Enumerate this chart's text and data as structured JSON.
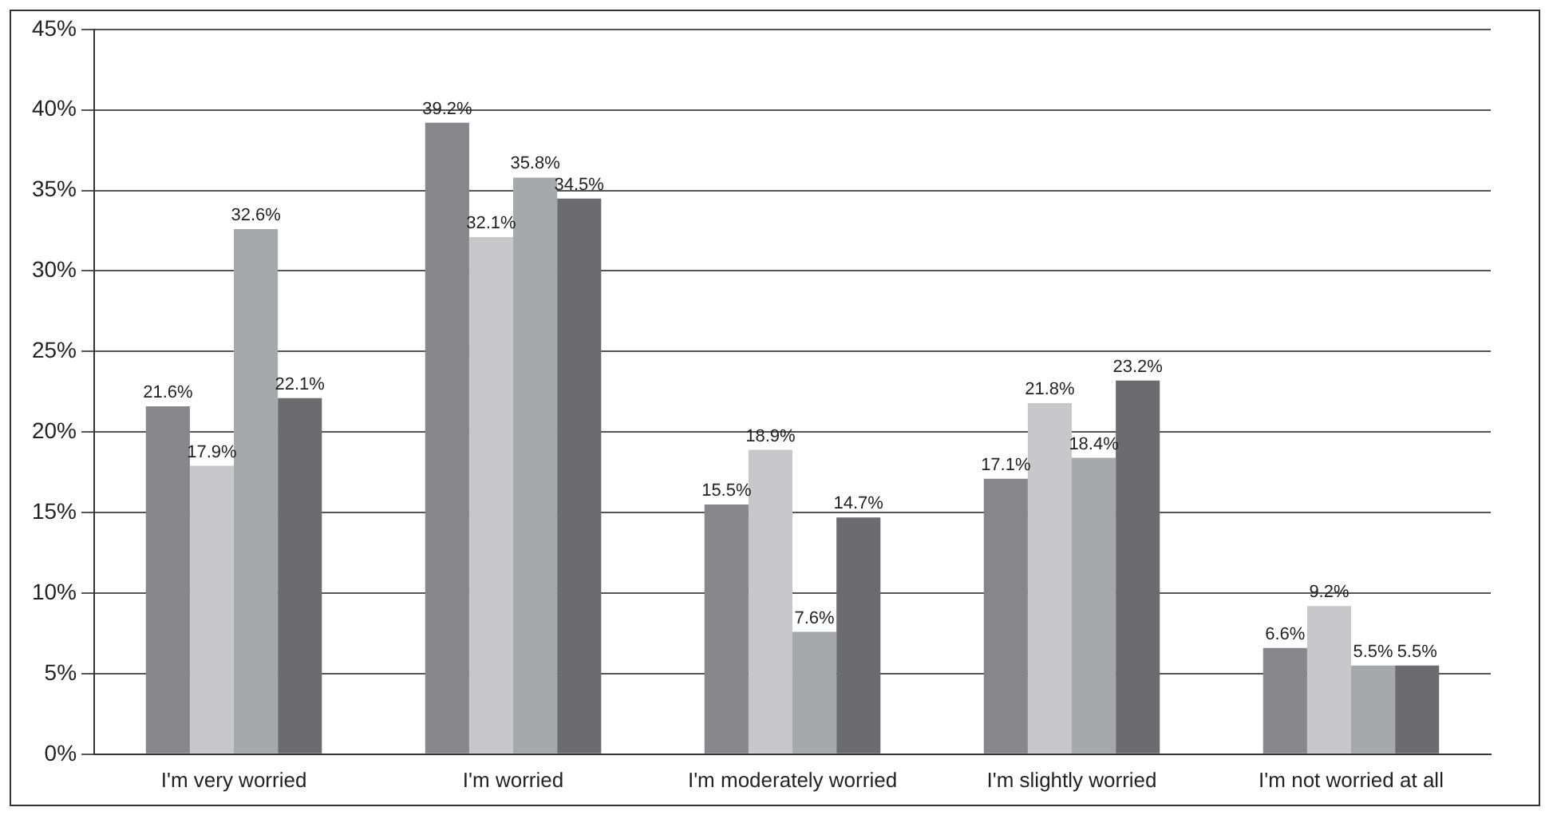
{
  "chart_data": {
    "type": "bar",
    "categories": [
      "I'm very worried",
      "I'm worried",
      "I'm moderately worried",
      "I'm slightly worried",
      "I'm not worried at all"
    ],
    "series": [
      {
        "color": "#87878b",
        "values": [
          21.6,
          39.2,
          15.5,
          17.1,
          6.6
        ],
        "value_labels": [
          "21.6%",
          "39.2%",
          "15.5%",
          "17.1%",
          "6.6%"
        ]
      },
      {
        "color": "#c8c8ca",
        "values": [
          17.9,
          32.1,
          18.9,
          21.8,
          9.2
        ],
        "value_labels": [
          "17.9%",
          "32.1%",
          "18.9%",
          "21.8%",
          "9.2%"
        ]
      },
      {
        "color": "#a7a8ab",
        "values": [
          32.6,
          35.8,
          7.6,
          18.4,
          5.5
        ],
        "value_labels": [
          "32.6%",
          "35.8%",
          "7.6%",
          "18.4%",
          "5.5%"
        ]
      },
      {
        "color": "#6b6b70",
        "values": [
          22.1,
          34.5,
          14.7,
          23.2,
          5.5
        ],
        "value_labels": [
          "22.1%",
          "34.5%",
          "14.7%",
          "23.2%",
          "5.5%"
        ]
      }
    ],
    "ylim": [
      0,
      45
    ],
    "yticks": [
      {
        "value": 0,
        "label": "0%"
      },
      {
        "value": 5,
        "label": "5%"
      },
      {
        "value": 10,
        "label": "10%"
      },
      {
        "value": 15,
        "label": "15%"
      },
      {
        "value": 20,
        "label": "20%"
      },
      {
        "value": 25,
        "label": "25%"
      },
      {
        "value": 30,
        "label": "30%"
      },
      {
        "value": 35,
        "label": "35%"
      },
      {
        "value": 40,
        "label": "40%"
      },
      {
        "value": 45,
        "label": "45%"
      }
    ],
    "grid": "y",
    "legend": false
  }
}
